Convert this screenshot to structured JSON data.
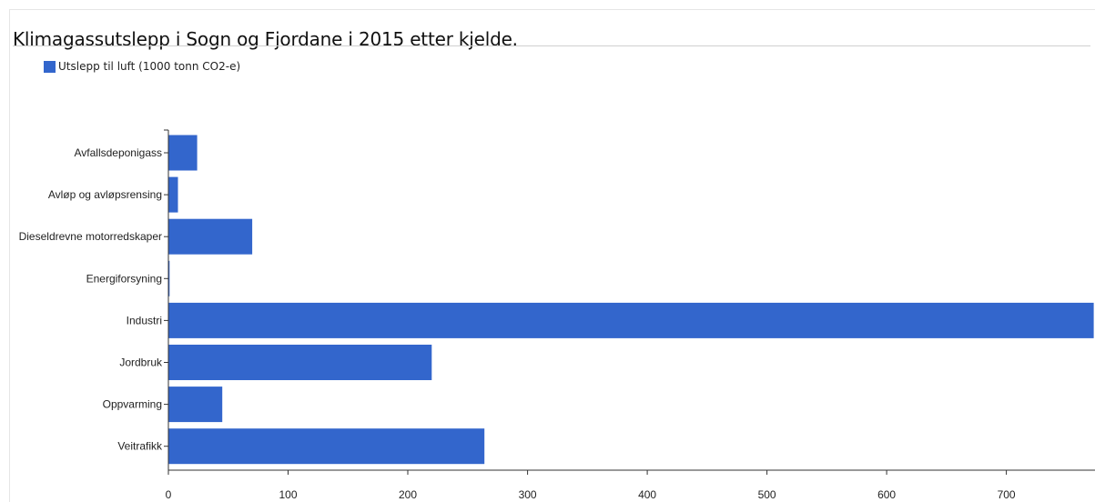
{
  "colors": {
    "bar": "#3366cc",
    "axis": "#333333"
  },
  "chart_data": {
    "type": "bar",
    "orientation": "horizontal",
    "title": "Klimagassutslepp i Sogn og Fjordane i 2015 etter kjelde.",
    "legend_position": "top-left",
    "categories": [
      "Avfallsdeponigass",
      "Avløp og avløpsrensing",
      "Dieseldrevne motorredskaper",
      "Energiforsyning",
      "Industri",
      "Jordbruk",
      "Oppvarming",
      "Veitrafikk"
    ],
    "series": [
      {
        "name": "Utslepp til luft (1000 tonn CO2-e)",
        "values": [
          24,
          8,
          70,
          1,
          773,
          220,
          45,
          264
        ]
      }
    ],
    "x_ticks": [
      0,
      100,
      200,
      300,
      400,
      500,
      600,
      700
    ],
    "xlim": [
      0,
      773
    ],
    "grid": false
  }
}
